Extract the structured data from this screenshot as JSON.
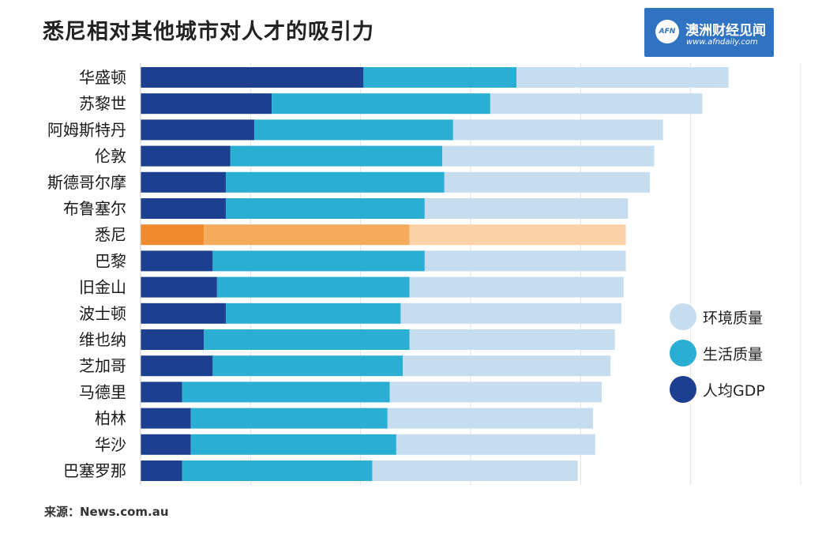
{
  "logo": {
    "mark": "AFN",
    "name": "澳洲财经见闻",
    "url": "www.afndaily.com"
  },
  "source": "来源：News.com.au",
  "legend": {
    "items": [
      {
        "label": "环境质量",
        "color": "#c6dcef"
      },
      {
        "label": "生活质量",
        "color": "#2aaed3"
      },
      {
        "label": "人均GDP",
        "color": "#1d3f8f"
      }
    ]
  },
  "chart_data": {
    "type": "bar",
    "orientation": "horizontal",
    "stacked": true,
    "title": "悉尼相对其他城市对人才的吸引力",
    "xlabel": "",
    "ylabel": "",
    "grid": true,
    "xlim": [
      0,
      151
    ],
    "categories": [
      "华盛顿",
      "苏黎世",
      "阿姆斯特丹",
      "伦敦",
      "斯德哥尔摩",
      "布鲁塞尔",
      "悉尼",
      "巴黎",
      "旧金山",
      "波士顿",
      "维也纳",
      "芝加哥",
      "马德里",
      "柏林",
      "华沙",
      "巴塞罗那"
    ],
    "highlight": "悉尼",
    "series": [
      {
        "name": "人均GDP",
        "color": "#1d3f8f",
        "highlight_color": "#ef8a2e",
        "values": [
          51,
          30,
          26,
          20.5,
          19.5,
          19.5,
          14.5,
          16.5,
          17.5,
          19.5,
          14.5,
          16.5,
          9.5,
          11.5,
          11.5,
          9.5
        ]
      },
      {
        "name": "生活质量",
        "color": "#2aaed3",
        "highlight_color": "#f4ac5c",
        "values": [
          35,
          50,
          45.5,
          48.5,
          50,
          45.5,
          47,
          48.5,
          44,
          40,
          47,
          43.5,
          47.5,
          45,
          47,
          43.5
        ]
      },
      {
        "name": "环境质量",
        "color": "#c6dcef",
        "highlight_color": "#fbd2a8",
        "values": [
          48.5,
          48.5,
          48,
          48.5,
          47,
          46.5,
          49.5,
          46,
          49,
          50.5,
          47,
          47.5,
          48.5,
          47,
          45.5,
          47
        ]
      }
    ],
    "legend_position": "right"
  }
}
